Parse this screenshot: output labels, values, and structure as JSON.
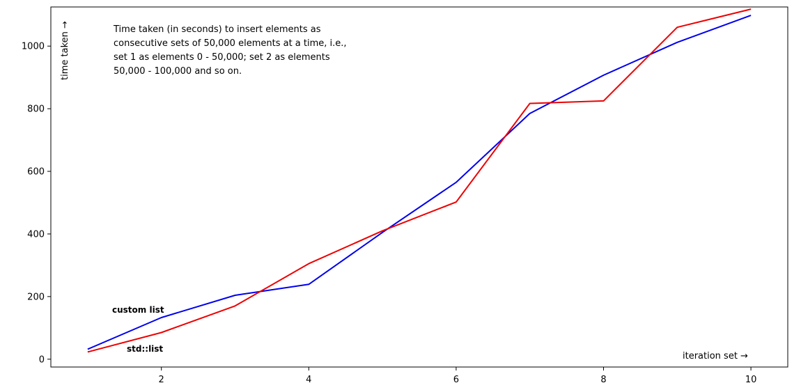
{
  "chart_data": {
    "type": "line",
    "title": "",
    "xlabel": "iteration set →",
    "ylabel": "time taken →",
    "xlim": [
      0.5,
      10.5
    ],
    "ylim": [
      -25,
      1125
    ],
    "xticks": [
      2,
      4,
      6,
      8,
      10
    ],
    "yticks": [
      0,
      200,
      400,
      600,
      800,
      1000
    ],
    "grid": false,
    "annotation_lines": [
      "Time taken (in seconds) to insert elements as",
      "consecutive sets of 50,000 elements at a time, i.e.,",
      "set 1 as elements 0 - 50,000; set 2 as elements",
      "50,000 - 100,000 and so on."
    ],
    "x": [
      1,
      2,
      3,
      4,
      5,
      6,
      7,
      8,
      9,
      10
    ],
    "series": [
      {
        "name": "custom list",
        "color": "#0000ee",
        "values": [
          32,
          133,
          204,
          239,
          405,
          565,
          785,
          907,
          1012,
          1098
        ]
      },
      {
        "name": "std::list",
        "color": "#ee0000",
        "values": [
          23,
          85,
          170,
          305,
          410,
          502,
          817,
          825,
          1060,
          1118
        ]
      }
    ]
  }
}
